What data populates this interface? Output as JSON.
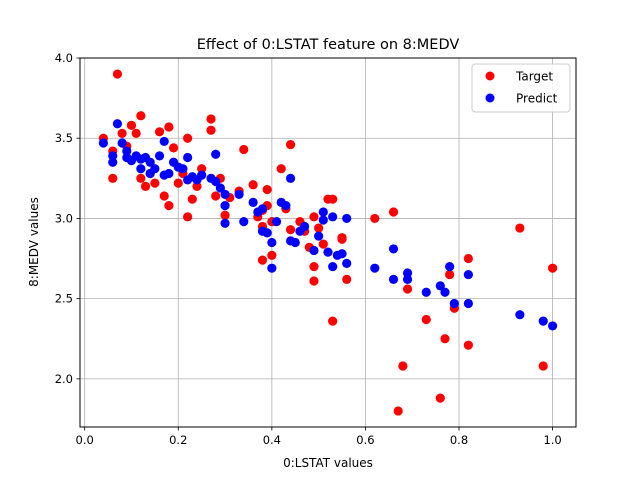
{
  "chart_data": {
    "type": "scatter",
    "title": "Effect of 0:LSTAT feature on 8:MEDV",
    "xlabel": "0:LSTAT values",
    "ylabel": "8:MEDV values",
    "xlim": [
      -0.01,
      1.05
    ],
    "ylim": [
      1.7,
      4.0
    ],
    "xticks": [
      "0.0",
      "0.2",
      "0.4",
      "0.6",
      "0.8",
      "1.0"
    ],
    "yticks": [
      "2.0",
      "2.5",
      "3.0",
      "3.5",
      "4.0"
    ],
    "grid": true,
    "legend_position": "top-right",
    "colors": {
      "target": "#ff0000",
      "predict": "#0000ff"
    },
    "series": [
      {
        "name": "Target",
        "points": [
          [
            0.04,
            3.5
          ],
          [
            0.06,
            3.42
          ],
          [
            0.06,
            3.25
          ],
          [
            0.07,
            3.9
          ],
          [
            0.08,
            3.53
          ],
          [
            0.09,
            3.45
          ],
          [
            0.1,
            3.58
          ],
          [
            0.11,
            3.53
          ],
          [
            0.12,
            3.64
          ],
          [
            0.12,
            3.25
          ],
          [
            0.13,
            3.2
          ],
          [
            0.14,
            3.28
          ],
          [
            0.15,
            3.22
          ],
          [
            0.16,
            3.54
          ],
          [
            0.17,
            3.14
          ],
          [
            0.18,
            3.57
          ],
          [
            0.18,
            3.08
          ],
          [
            0.19,
            3.44
          ],
          [
            0.2,
            3.22
          ],
          [
            0.21,
            3.28
          ],
          [
            0.22,
            3.5
          ],
          [
            0.22,
            3.01
          ],
          [
            0.23,
            3.12
          ],
          [
            0.24,
            3.2
          ],
          [
            0.25,
            3.31
          ],
          [
            0.27,
            3.62
          ],
          [
            0.27,
            3.55
          ],
          [
            0.28,
            3.14
          ],
          [
            0.29,
            3.25
          ],
          [
            0.3,
            3.02
          ],
          [
            0.33,
            3.17
          ],
          [
            0.34,
            3.43
          ],
          [
            0.36,
            3.21
          ],
          [
            0.37,
            3.01
          ],
          [
            0.38,
            2.95
          ],
          [
            0.38,
            2.74
          ],
          [
            0.39,
            3.18
          ],
          [
            0.39,
            3.08
          ],
          [
            0.4,
            2.77
          ],
          [
            0.42,
            3.31
          ],
          [
            0.43,
            3.06
          ],
          [
            0.44,
            3.46
          ],
          [
            0.44,
            2.93
          ],
          [
            0.46,
            2.98
          ],
          [
            0.47,
            2.92
          ],
          [
            0.48,
            2.82
          ],
          [
            0.49,
            3.01
          ],
          [
            0.49,
            2.7
          ],
          [
            0.5,
            2.94
          ],
          [
            0.51,
            2.84
          ],
          [
            0.52,
            3.12
          ],
          [
            0.53,
            3.12
          ],
          [
            0.53,
            2.36
          ],
          [
            0.55,
            2.88
          ],
          [
            0.55,
            2.87
          ],
          [
            0.56,
            2.62
          ],
          [
            0.62,
            3.0
          ],
          [
            0.66,
            3.04
          ],
          [
            0.67,
            1.8
          ],
          [
            0.68,
            2.08
          ],
          [
            0.69,
            2.56
          ],
          [
            0.73,
            2.37
          ],
          [
            0.76,
            1.88
          ],
          [
            0.77,
            2.25
          ],
          [
            0.78,
            2.65
          ],
          [
            0.79,
            2.44
          ],
          [
            0.82,
            2.75
          ],
          [
            0.82,
            2.21
          ],
          [
            0.93,
            2.94
          ],
          [
            0.98,
            2.08
          ],
          [
            1.0,
            2.69
          ],
          [
            0.49,
            2.61
          ],
          [
            0.38,
            3.05
          ],
          [
            0.4,
            2.98
          ],
          [
            0.31,
            3.13
          ]
        ]
      },
      {
        "name": "Predict",
        "points": [
          [
            0.04,
            3.47
          ],
          [
            0.06,
            3.39
          ],
          [
            0.06,
            3.35
          ],
          [
            0.07,
            3.59
          ],
          [
            0.08,
            3.47
          ],
          [
            0.09,
            3.42
          ],
          [
            0.09,
            3.38
          ],
          [
            0.1,
            3.36
          ],
          [
            0.11,
            3.39
          ],
          [
            0.12,
            3.37
          ],
          [
            0.12,
            3.31
          ],
          [
            0.13,
            3.38
          ],
          [
            0.14,
            3.28
          ],
          [
            0.14,
            3.35
          ],
          [
            0.15,
            3.31
          ],
          [
            0.16,
            3.39
          ],
          [
            0.17,
            3.27
          ],
          [
            0.17,
            3.48
          ],
          [
            0.18,
            3.28
          ],
          [
            0.19,
            3.35
          ],
          [
            0.2,
            3.32
          ],
          [
            0.21,
            3.31
          ],
          [
            0.22,
            3.38
          ],
          [
            0.22,
            3.24
          ],
          [
            0.23,
            3.26
          ],
          [
            0.24,
            3.24
          ],
          [
            0.25,
            3.27
          ],
          [
            0.27,
            3.25
          ],
          [
            0.28,
            3.4
          ],
          [
            0.28,
            3.23
          ],
          [
            0.29,
            3.19
          ],
          [
            0.3,
            3.15
          ],
          [
            0.3,
            3.08
          ],
          [
            0.3,
            2.97
          ],
          [
            0.33,
            3.15
          ],
          [
            0.34,
            2.98
          ],
          [
            0.36,
            3.1
          ],
          [
            0.37,
            3.04
          ],
          [
            0.38,
            3.06
          ],
          [
            0.38,
            2.92
          ],
          [
            0.39,
            2.91
          ],
          [
            0.4,
            2.85
          ],
          [
            0.4,
            2.69
          ],
          [
            0.41,
            2.98
          ],
          [
            0.42,
            3.1
          ],
          [
            0.43,
            3.08
          ],
          [
            0.44,
            3.25
          ],
          [
            0.44,
            2.86
          ],
          [
            0.45,
            2.85
          ],
          [
            0.46,
            2.92
          ],
          [
            0.47,
            2.95
          ],
          [
            0.49,
            2.8
          ],
          [
            0.5,
            2.89
          ],
          [
            0.51,
            3.04
          ],
          [
            0.51,
            2.99
          ],
          [
            0.52,
            2.79
          ],
          [
            0.53,
            3.01
          ],
          [
            0.53,
            2.7
          ],
          [
            0.54,
            2.77
          ],
          [
            0.55,
            2.78
          ],
          [
            0.56,
            3.0
          ],
          [
            0.56,
            2.72
          ],
          [
            0.62,
            2.69
          ],
          [
            0.66,
            2.62
          ],
          [
            0.66,
            2.81
          ],
          [
            0.69,
            2.66
          ],
          [
            0.69,
            2.62
          ],
          [
            0.73,
            2.54
          ],
          [
            0.76,
            2.58
          ],
          [
            0.77,
            2.54
          ],
          [
            0.78,
            2.7
          ],
          [
            0.79,
            2.47
          ],
          [
            0.82,
            2.65
          ],
          [
            0.82,
            2.47
          ],
          [
            0.93,
            2.4
          ],
          [
            0.98,
            2.36
          ],
          [
            1.0,
            2.33
          ]
        ]
      }
    ]
  }
}
